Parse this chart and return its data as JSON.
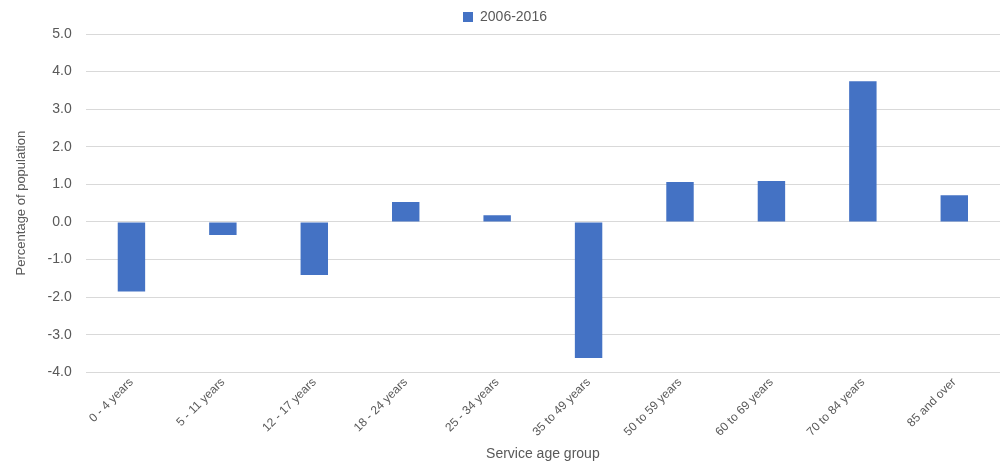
{
  "chart_data": {
    "type": "bar",
    "xlabel": "Service age group",
    "ylabel": "Percentage of population",
    "categories": [
      "0 - 4 years",
      "5 - 11 years",
      "12 - 17 years",
      "18 - 24 years",
      "25 - 34 years",
      "35 to 49 years",
      "50 to 59 years",
      "60 to 69 years",
      "70 to 84 years",
      "85 and over"
    ],
    "series": [
      {
        "name": "2006-2016",
        "color": "#4472c4",
        "values": [
          -1.85,
          -0.35,
          -1.41,
          0.53,
          0.18,
          -3.62,
          1.06,
          1.09,
          3.74,
          0.71
        ]
      }
    ],
    "ylim": [
      -4,
      5
    ],
    "yticks": [
      {
        "value": -4,
        "label": "-4.0"
      },
      {
        "value": -3,
        "label": "-3.0"
      },
      {
        "value": -2,
        "label": "-2.0"
      },
      {
        "value": -1,
        "label": "-1.0"
      },
      {
        "value": 0,
        "label": "0.0"
      },
      {
        "value": 1,
        "label": "1.0"
      },
      {
        "value": 2,
        "label": "2.0"
      },
      {
        "value": 3,
        "label": "3.0"
      },
      {
        "value": 4,
        "label": "4.0"
      },
      {
        "value": 5,
        "label": "5.0"
      }
    ],
    "grid": "y",
    "legend": "top"
  }
}
